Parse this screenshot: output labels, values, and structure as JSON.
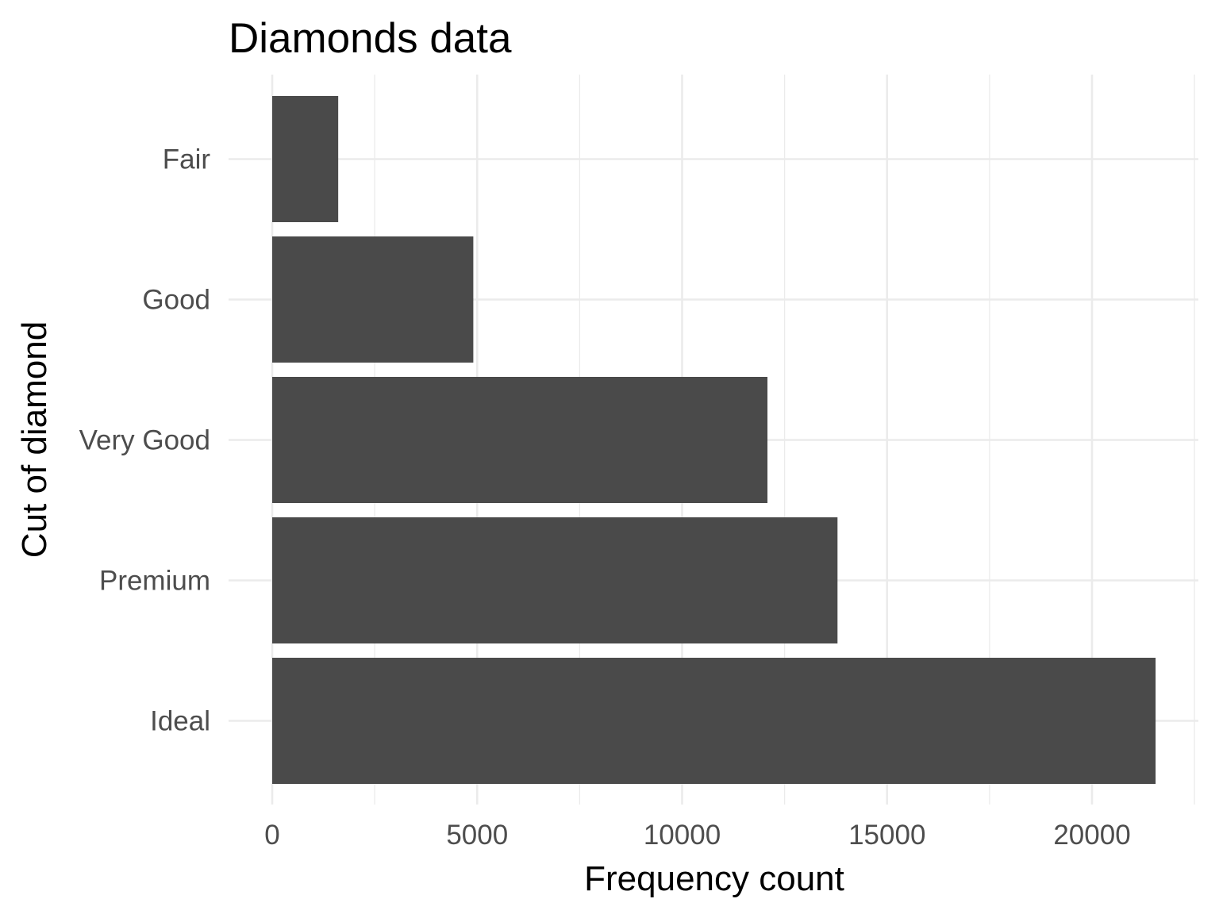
{
  "chart_data": {
    "type": "bar",
    "orientation": "horizontal",
    "title": "Diamonds data",
    "xlabel": "Frequency count",
    "ylabel": "Cut of diamond",
    "categories": [
      "Fair",
      "Good",
      "Very Good",
      "Premium",
      "Ideal"
    ],
    "values": [
      1610,
      4906,
      12082,
      13791,
      21551
    ],
    "xlim": [
      0,
      22600
    ],
    "xticks": [
      0,
      5000,
      10000,
      15000,
      20000
    ],
    "xtick_labels": [
      "0",
      "5000",
      "10000",
      "15000",
      "20000"
    ],
    "grid": true,
    "legend": "none",
    "colors": {
      "bar": "#4a4a4a",
      "grid": "#ebebeb",
      "tick_text": "#4d4d4d",
      "title_text": "#000000",
      "background": "#ffffff"
    }
  }
}
